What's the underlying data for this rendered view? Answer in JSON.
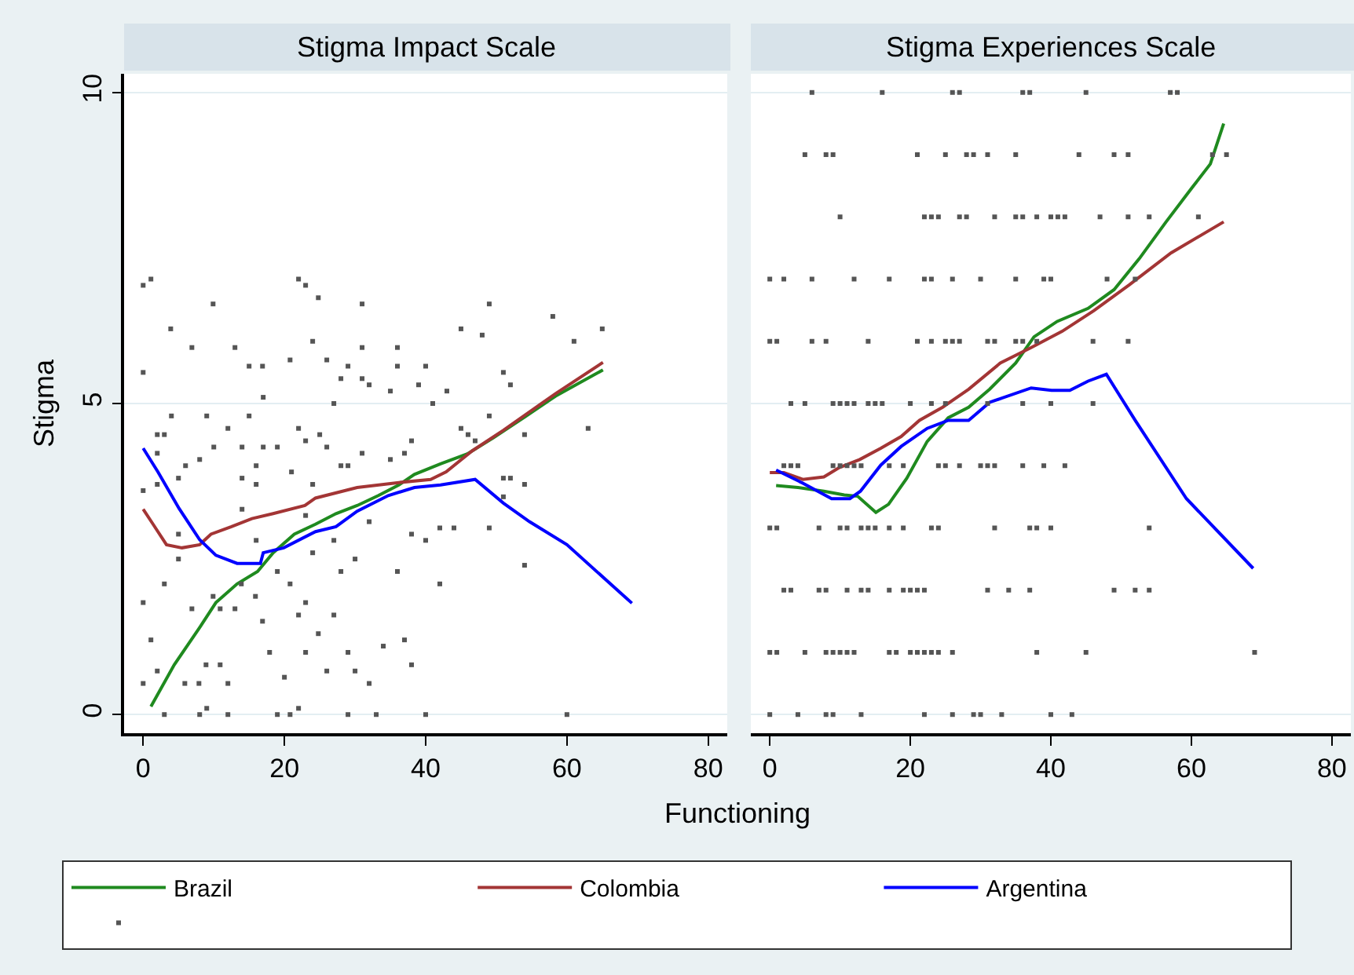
{
  "chart_data": [
    {
      "type": "line",
      "title": "Stigma Impact Scale",
      "ylabel": "Stigma",
      "xlabel": "Functioning",
      "xlim": [
        -2.7,
        82.7
      ],
      "xticks": [
        0,
        20,
        40,
        60,
        80
      ],
      "ylim": [
        -0.3,
        10.3
      ],
      "yticks": [
        0,
        5,
        10
      ],
      "grid": "y",
      "legend": "bottom",
      "series": [
        {
          "name": "Brazil",
          "color": "#1f8a1f",
          "x": [
            1.1,
            4.4,
            8,
            10.3,
            13.3,
            16.2,
            18.4,
            21.4,
            24.4,
            27.3,
            30.3,
            33.3,
            36.2,
            38.4,
            42.1,
            45.9,
            49.6,
            54,
            58.4,
            65.1
          ],
          "values": [
            0.13,
            0.8,
            1.4,
            1.8,
            2.1,
            2.3,
            2.6,
            2.9,
            3.06,
            3.23,
            3.36,
            3.52,
            3.69,
            3.86,
            4.03,
            4.19,
            4.45,
            4.78,
            5.12,
            5.54
          ]
        },
        {
          "name": "Colombia",
          "color": "#a33535",
          "x": [
            0,
            1.4,
            3.3,
            5.5,
            8,
            9.6,
            12.5,
            15.4,
            18.4,
            22.9,
            24.4,
            30.3,
            36.2,
            40.7,
            42.9,
            46.6,
            51,
            58.4,
            65.1
          ],
          "values": [
            3.3,
            3.06,
            2.73,
            2.68,
            2.73,
            2.9,
            3.02,
            3.15,
            3.23,
            3.36,
            3.48,
            3.65,
            3.73,
            3.78,
            3.9,
            4.24,
            4.57,
            5.16,
            5.66
          ]
        },
        {
          "name": "Argentina",
          "color": "#0000ff",
          "x": [
            0,
            2.1,
            5.1,
            8,
            10.3,
            13.3,
            16.6,
            17,
            19.9,
            24.4,
            27.3,
            30.3,
            34.7,
            38.4,
            42.1,
            47,
            51,
            54.7,
            60,
            69.2
          ],
          "values": [
            4.28,
            3.9,
            3.31,
            2.81,
            2.56,
            2.43,
            2.43,
            2.6,
            2.68,
            2.94,
            3.02,
            3.27,
            3.52,
            3.65,
            3.69,
            3.78,
            3.4,
            3.1,
            2.73,
            1.79
          ]
        },
        {
          "type": "scatter",
          "color": "#555555",
          "x": [
            0,
            1.1,
            3.9,
            0,
            6.9,
            9.9,
            13,
            15,
            16.9,
            22,
            23,
            24.8,
            20.8,
            24,
            26,
            29,
            31,
            31,
            28,
            31,
            32,
            36,
            36,
            40,
            39,
            35,
            43,
            45,
            48,
            49,
            58,
            61,
            65,
            51,
            52,
            63,
            54,
            49,
            41,
            45,
            46,
            47,
            51,
            52,
            54,
            51,
            49,
            44,
            42,
            40,
            38,
            54,
            42,
            36,
            32,
            28,
            30,
            27,
            24,
            23,
            19,
            20.8,
            22,
            23,
            24.8,
            27,
            23,
            26,
            29,
            30,
            32,
            34,
            37,
            38,
            16.9,
            15.9,
            13.9,
            9.9,
            10.9,
            13,
            6.9,
            3,
            0,
            1.1,
            2,
            0,
            5.9,
            7.9,
            8.9,
            10.9,
            12,
            17.9,
            20,
            3,
            8,
            9,
            12,
            19,
            20.8,
            22,
            29,
            33,
            40,
            60,
            0,
            2,
            5,
            6,
            8,
            4,
            2,
            3,
            2,
            9,
            10,
            12,
            14,
            15,
            17,
            17,
            19,
            16,
            14,
            16,
            21,
            22,
            23,
            25,
            26,
            28,
            29,
            31,
            35,
            38,
            37,
            5,
            5,
            14,
            16,
            24,
            27
          ],
          "values": [
            6.9,
            7.0,
            6.2,
            5.5,
            5.9,
            6.6,
            5.9,
            5.6,
            5.6,
            7.0,
            6.9,
            6.7,
            5.7,
            6.0,
            5.7,
            5.6,
            6.6,
            5.9,
            5.4,
            5.4,
            5.3,
            5.9,
            5.6,
            5.6,
            5.3,
            5.2,
            5.2,
            6.2,
            6.1,
            6.6,
            6.4,
            6.0,
            6.2,
            5.5,
            5.3,
            4.6,
            4.5,
            4.8,
            5.0,
            4.6,
            4.5,
            4.4,
            3.8,
            3.8,
            3.7,
            3.5,
            3.0,
            3.0,
            3.0,
            2.8,
            2.9,
            2.4,
            2.1,
            2.3,
            3.1,
            2.3,
            2.5,
            2.8,
            2.6,
            3.2,
            2.3,
            2.1,
            1.6,
            1.8,
            1.3,
            1.6,
            1.0,
            0.7,
            1.0,
            0.7,
            0.5,
            1.1,
            1.2,
            0.8,
            1.5,
            1.9,
            2.1,
            1.9,
            1.7,
            1.7,
            1.7,
            2.1,
            1.8,
            1.2,
            0.7,
            0.5,
            0.5,
            0.5,
            0.8,
            0.8,
            0.5,
            1.0,
            0.6,
            0,
            0,
            0.1,
            0,
            0,
            0,
            0.1,
            0,
            0,
            0,
            0,
            3.6,
            3.7,
            3.8,
            4.0,
            4.1,
            4.8,
            4.5,
            4.5,
            4.2,
            4.8,
            4.3,
            4.6,
            4.3,
            4.8,
            5.1,
            4.3,
            4.3,
            4.0,
            3.8,
            3.7,
            3.9,
            4.6,
            4.4,
            4.5,
            4.3,
            4.0,
            4.0,
            4.2,
            4.1,
            4.4,
            4.2,
            2.9,
            2.5,
            3.3,
            2.8,
            3.7,
            5.0
          ]
        }
      ]
    },
    {
      "type": "line",
      "title": "Stigma Experiences Scale",
      "xlim": [
        -2.7,
        82.7
      ],
      "xticks": [
        0,
        20,
        40,
        60,
        80
      ],
      "ylim": [
        -0.3,
        10.3
      ],
      "yticks": [
        0,
        5,
        10
      ],
      "grid": "y",
      "tick_labels": "x",
      "series": [
        {
          "color": "#1f8a1f",
          "x": [
            0.9,
            4,
            7.7,
            10.6,
            12.5,
            15.1,
            16.9,
            19.5,
            22.4,
            25.4,
            28.3,
            31.3,
            35,
            37.6,
            40.9,
            45.3,
            49,
            52.6,
            56.4,
            60.1,
            62.7,
            64.6
          ],
          "values": [
            3.68,
            3.65,
            3.59,
            3.53,
            3.51,
            3.25,
            3.38,
            3.8,
            4.39,
            4.77,
            4.94,
            5.23,
            5.65,
            6.07,
            6.32,
            6.53,
            6.83,
            7.33,
            7.92,
            8.47,
            8.85,
            9.5
          ]
        },
        {
          "color": "#a33535",
          "x": [
            0,
            2,
            4.7,
            7.7,
            9.9,
            12.8,
            15.8,
            18.7,
            21.3,
            24.6,
            28.3,
            32.8,
            37.2,
            41.6,
            46.1,
            51.2,
            57.1,
            64.6
          ],
          "values": [
            3.89,
            3.89,
            3.78,
            3.82,
            3.97,
            4.1,
            4.28,
            4.47,
            4.73,
            4.94,
            5.23,
            5.65,
            5.9,
            6.16,
            6.49,
            6.91,
            7.42,
            7.92
          ]
        },
        {
          "color": "#0000ff",
          "x": [
            0.9,
            4.7,
            8.8,
            11.4,
            12.9,
            15.8,
            18.7,
            22.4,
            25.4,
            28.3,
            31.3,
            37.2,
            40.1,
            42.7,
            45.3,
            47.9,
            52,
            59.3,
            68.8
          ],
          "values": [
            3.93,
            3.72,
            3.47,
            3.47,
            3.59,
            4.01,
            4.31,
            4.6,
            4.73,
            4.73,
            5.02,
            5.25,
            5.21,
            5.21,
            5.36,
            5.47,
            4.73,
            3.47,
            2.35
          ]
        },
        {
          "type": "scatter",
          "color": "#555555",
          "x": [
            6,
            16,
            26,
            27,
            36,
            37,
            45,
            57,
            58,
            5,
            8,
            9,
            21,
            25,
            28,
            29,
            31,
            35,
            44,
            49,
            51,
            63,
            65,
            10,
            22,
            23,
            24,
            27,
            28,
            32,
            35,
            36,
            38,
            40,
            41,
            42,
            47,
            51,
            54,
            61,
            0,
            2,
            6,
            12,
            17,
            22,
            23,
            26,
            30,
            35,
            39,
            40,
            48,
            52,
            0,
            1,
            6,
            8,
            14,
            21,
            23,
            25,
            26,
            27,
            31,
            32,
            35,
            36,
            38,
            46,
            51,
            3,
            5,
            9,
            10,
            11,
            12,
            14,
            15,
            16,
            20,
            23,
            25,
            31,
            36,
            40,
            46,
            2,
            3,
            4,
            9,
            10,
            11,
            12,
            13,
            17,
            19,
            24,
            25,
            27,
            30,
            31,
            32,
            36,
            39,
            42,
            0,
            1,
            7,
            10,
            11,
            13,
            14,
            15,
            17,
            19,
            23,
            24,
            32,
            37,
            38,
            40,
            54,
            2,
            3,
            7,
            8,
            11,
            13,
            14,
            17,
            19,
            20,
            21,
            22,
            31,
            34,
            37,
            49,
            52,
            54,
            0,
            1,
            5,
            8,
            9,
            10,
            11,
            12,
            17,
            18,
            20,
            21,
            22,
            23,
            24,
            26,
            38,
            45,
            69,
            0,
            4,
            8,
            9,
            13,
            22,
            26,
            29,
            30,
            33,
            40,
            43
          ],
          "values": [
            10,
            10,
            10,
            10,
            10,
            10,
            10,
            10,
            10,
            9,
            9,
            9,
            9,
            9,
            9,
            9,
            9,
            9,
            9,
            9,
            9,
            9,
            9,
            8,
            8,
            8,
            8,
            8,
            8,
            8,
            8,
            8,
            8,
            8,
            8,
            8,
            8,
            8,
            8,
            8,
            7,
            7,
            7,
            7,
            7,
            7,
            7,
            7,
            7,
            7,
            7,
            7,
            7,
            7,
            6,
            6,
            6,
            6,
            6,
            6,
            6,
            6,
            6,
            6,
            6,
            6,
            6,
            6,
            6,
            6,
            6,
            5,
            5,
            5,
            5,
            5,
            5,
            5,
            5,
            5,
            5,
            5,
            5,
            5,
            5,
            5,
            5,
            4,
            4,
            4,
            4,
            4,
            4,
            4,
            4,
            4,
            4,
            4,
            4,
            4,
            4,
            4,
            4,
            4,
            4,
            4,
            3,
            3,
            3,
            3,
            3,
            3,
            3,
            3,
            3,
            3,
            3,
            3,
            3,
            3,
            3,
            3,
            3,
            2,
            2,
            2,
            2,
            2,
            2,
            2,
            2,
            2,
            2,
            2,
            2,
            2,
            2,
            2,
            2,
            2,
            2,
            1,
            1,
            1,
            1,
            1,
            1,
            1,
            1,
            1,
            1,
            1,
            1,
            1,
            1,
            1,
            1,
            1,
            1,
            1,
            0,
            0,
            0,
            0,
            0,
            0,
            0,
            0,
            0,
            0,
            0,
            0
          ]
        }
      ]
    }
  ]
}
